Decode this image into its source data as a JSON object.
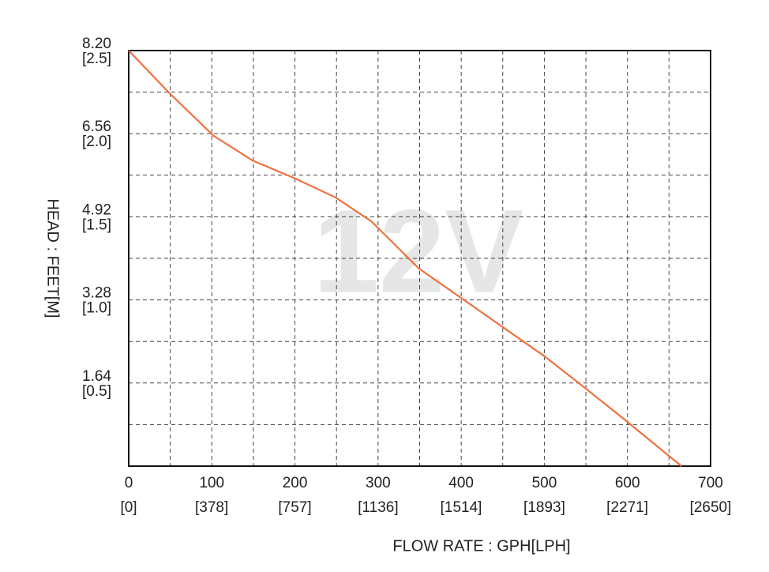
{
  "chart_data": {
    "type": "line",
    "watermark": "12V",
    "x_label": "FLOW RATE : GPH[LPH]",
    "y_label": "HEAD : FEET[M]",
    "color": "#f07040",
    "x": [
      0,
      49,
      102,
      149,
      201,
      249,
      292,
      349,
      405,
      453,
      500,
      543,
      595,
      665
    ],
    "values": [
      8.2,
      7.36,
      6.52,
      6.03,
      5.67,
      5.3,
      4.83,
      3.9,
      3.26,
      2.71,
      2.17,
      1.62,
      0.94,
      0
    ],
    "xlim": [
      0,
      700
    ],
    "xticks": [
      0,
      100,
      200,
      300,
      400,
      500,
      600,
      700
    ],
    "x2lim": [
      0,
      2650
    ],
    "x2ticks": [
      {
        "value": 0,
        "label": "[0]"
      },
      {
        "value": 378,
        "label": "[378]"
      },
      {
        "value": 757,
        "label": "[757]"
      },
      {
        "value": 1136,
        "label": "[1136]"
      },
      {
        "value": 1514,
        "label": "[1514]"
      },
      {
        "value": 1893,
        "label": "[1893]"
      },
      {
        "value": 2271,
        "label": "[2271]"
      },
      {
        "value": 2650,
        "label": "[2650]"
      }
    ],
    "ylim": [
      0,
      8.2
    ],
    "yticks": [
      1.64,
      3.28,
      4.92,
      6.56,
      {
        "value": 8.2,
        "label": "8.20"
      }
    ],
    "y2lim": [
      0,
      2.5
    ],
    "y2ticks": [
      {
        "value": 0.5,
        "label": "[0.5]"
      },
      {
        "value": 1,
        "label": "[1.0]"
      },
      {
        "value": 1.5,
        "label": "[1.5]"
      },
      {
        "value": 2,
        "label": "[2.0]"
      },
      {
        "value": 2.5,
        "label": "[2.5]"
      }
    ],
    "grid": true
  }
}
